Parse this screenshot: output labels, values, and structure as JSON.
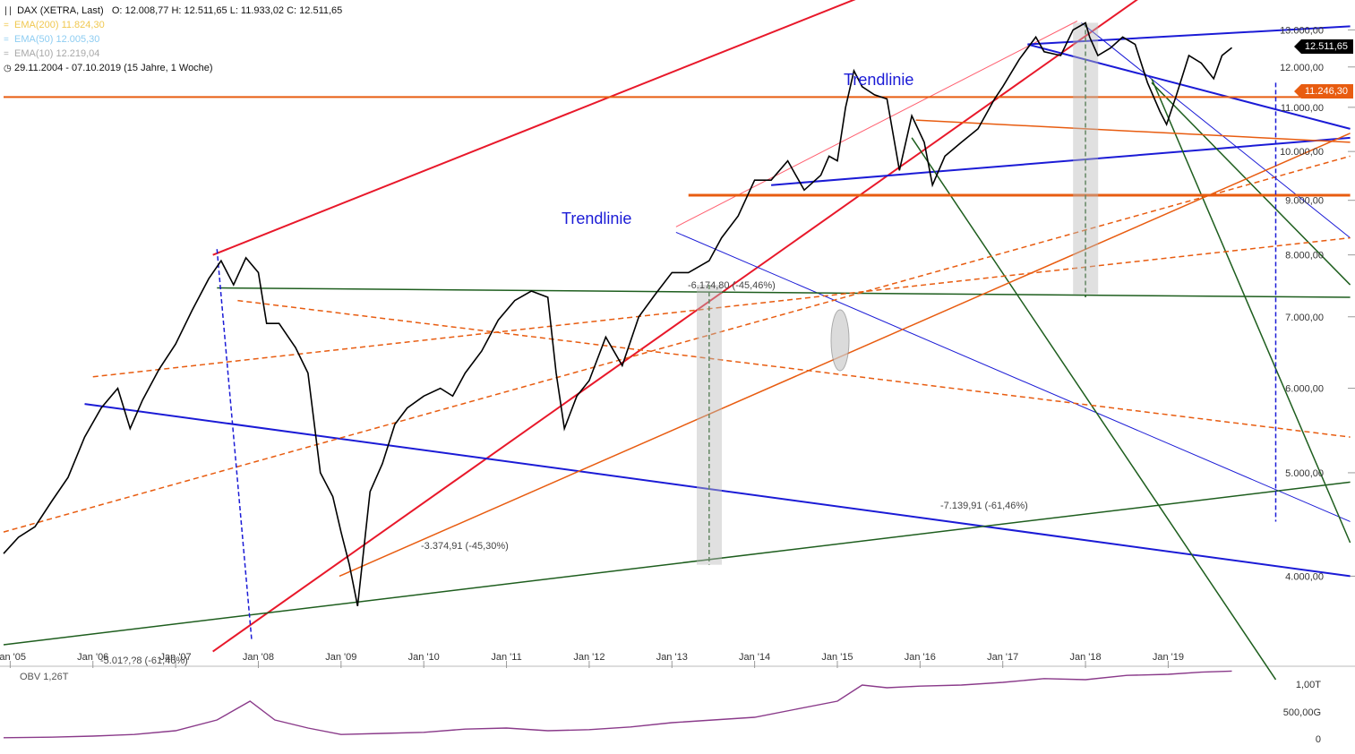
{
  "header": {
    "title": "DAX (XETRA, Last)",
    "ohlc": "O: 12.008,77   H: 12.511,65   L: 11.933,02   C: 12.511,65",
    "ema200": "EMA(200)  11.824,30",
    "ema50": "EMA(50)  12.005,30",
    "ema10": "EMA(10)  12.219,04",
    "range": "29.11.2004 - 07.10.2019   (15 Jahre, 1 Woche)"
  },
  "colors": {
    "up_red": "#e8182a",
    "blue": "#1b1bd6",
    "green": "#1e5e1e",
    "orange": "#e85c10",
    "price": "#000000",
    "obv": "#8a3a8a",
    "last_tag": "#000000",
    "level_tag": "#e85c10"
  },
  "price_tag": "12.511,65",
  "level_tag": "11.246,30",
  "annotations": {
    "trend_upper": "Trendlinie",
    "trend_lower": "Trendlinie",
    "drop_2008": "-5.01?,?8 (-61,46%)",
    "drop_2011": "-3.374,91 (-45,30%)",
    "drop_2018": "-6.174,80 (-45,46%)",
    "drop_target": "-7.139,91 (-61,46%)"
  },
  "obv": {
    "label": "OBV  1,26T",
    "ticks": [
      "1,00T",
      "500,00G",
      "0"
    ]
  },
  "chart_data": {
    "type": "line",
    "title": "DAX (XETRA, Last)",
    "ylim": [
      3300,
      13600
    ],
    "x_range": [
      "2004-11-29",
      "2019-10-07"
    ],
    "y_ticks": [
      4000,
      5000,
      6000,
      7000,
      8000,
      9000,
      10000,
      11000,
      12000,
      13000
    ],
    "y_tick_labels": [
      "4.000,00",
      "5.000,00",
      "6.000,00",
      "7.000,00",
      "8.000,00",
      "9.000,00",
      "10.000,00",
      "11.000,00",
      "12.000,00",
      "13.000,00"
    ],
    "x_tick_labels": [
      "Jan '05",
      "Jan '06",
      "Jan '07",
      "Jan '08",
      "Jan '09",
      "Jan '10",
      "Jan '11",
      "Jan '12",
      "Jan '13",
      "Jan '14",
      "Jan '15",
      "Jan '16",
      "Jan '17",
      "Jan '18",
      "Jan '19"
    ],
    "x_tick_years": [
      2005,
      2006,
      2007,
      2008,
      2009,
      2010,
      2011,
      2012,
      2013,
      2014,
      2015,
      2016,
      2017,
      2018,
      2019
    ],
    "series": [
      {
        "name": "DAX (XETRA, Last)",
        "x": [
          2004.92,
          2005.1,
          2005.3,
          2005.5,
          2005.7,
          2005.9,
          2006.1,
          2006.3,
          2006.45,
          2006.6,
          2006.8,
          2007.0,
          2007.2,
          2007.4,
          2007.55,
          2007.7,
          2007.85,
          2008.0,
          2008.1,
          2008.25,
          2008.45,
          2008.6,
          2008.75,
          2008.9,
          2009.0,
          2009.1,
          2009.2,
          2009.35,
          2009.5,
          2009.65,
          2009.8,
          2010.0,
          2010.2,
          2010.35,
          2010.5,
          2010.7,
          2010.9,
          2011.1,
          2011.3,
          2011.5,
          2011.6,
          2011.7,
          2011.85,
          2012.0,
          2012.2,
          2012.4,
          2012.6,
          2012.8,
          2013.0,
          2013.2,
          2013.45,
          2013.6,
          2013.8,
          2014.0,
          2014.2,
          2014.4,
          2014.6,
          2014.8,
          2014.9,
          2015.0,
          2015.1,
          2015.2,
          2015.3,
          2015.45,
          2015.6,
          2015.75,
          2015.9,
          2016.05,
          2016.15,
          2016.3,
          2016.5,
          2016.7,
          2016.9,
          2017.0,
          2017.2,
          2017.4,
          2017.5,
          2017.7,
          2017.85,
          2018.0,
          2018.05,
          2018.15,
          2018.3,
          2018.45,
          2018.6,
          2018.75,
          2018.9,
          2018.98,
          2019.1,
          2019.25,
          2019.4,
          2019.55,
          2019.65,
          2019.77
        ],
        "values": [
          4200,
          4350,
          4450,
          4700,
          4950,
          5400,
          5750,
          6000,
          5500,
          5850,
          6250,
          6600,
          7100,
          7600,
          7900,
          7500,
          7950,
          7700,
          6900,
          6900,
          6550,
          6200,
          5000,
          4750,
          4400,
          4100,
          3750,
          4800,
          5100,
          5550,
          5750,
          5900,
          6000,
          5900,
          6200,
          6500,
          6950,
          7250,
          7400,
          7300,
          6200,
          5500,
          5900,
          6100,
          6700,
          6300,
          7000,
          7350,
          7700,
          7700,
          7900,
          8300,
          8700,
          9400,
          9400,
          9800,
          9200,
          9500,
          9900,
          9800,
          11000,
          11900,
          11500,
          11300,
          11200,
          9600,
          10800,
          10200,
          9300,
          9900,
          10200,
          10500,
          11200,
          11500,
          12200,
          12800,
          12400,
          12300,
          13000,
          13200,
          12800,
          12300,
          12500,
          12800,
          12600,
          11600,
          10900,
          10600,
          11300,
          12300,
          12100,
          11700,
          12300,
          12511.65
        ]
      },
      {
        "name": "OBV",
        "x": [
          2004.92,
          2005.5,
          2006.0,
          2006.5,
          2007.0,
          2007.5,
          2007.9,
          2008.2,
          2008.6,
          2009.0,
          2009.5,
          2010.0,
          2010.5,
          2011.0,
          2011.5,
          2012.0,
          2012.5,
          2013.0,
          2013.5,
          2014.0,
          2014.5,
          2015.0,
          2015.3,
          2015.6,
          2016.0,
          2016.5,
          2017.0,
          2017.5,
          2018.0,
          2018.5,
          2019.0,
          2019.4,
          2019.77
        ],
        "values": [
          0.02,
          0.03,
          0.05,
          0.08,
          0.15,
          0.35,
          0.7,
          0.35,
          0.2,
          0.08,
          0.1,
          0.12,
          0.18,
          0.2,
          0.15,
          0.17,
          0.22,
          0.3,
          0.35,
          0.4,
          0.55,
          0.7,
          1.0,
          0.95,
          0.98,
          1.0,
          1.05,
          1.12,
          1.1,
          1.18,
          1.2,
          1.24,
          1.26
        ]
      }
    ]
  }
}
